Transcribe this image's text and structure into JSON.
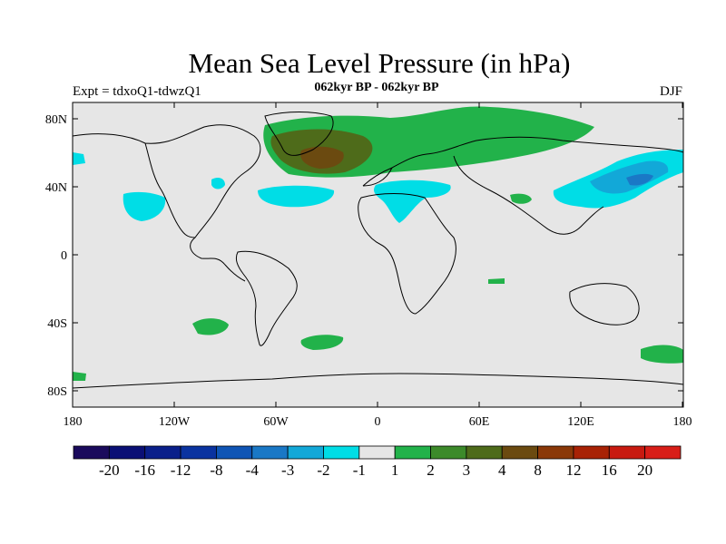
{
  "title": "Mean Sea Level Pressure (in hPa)",
  "experiment": "Expt = tdxoQ1-tdwzQ1",
  "period": "062kyr BP - 062kyr BP",
  "season": "DJF",
  "lat_ticks": [
    "80N",
    "40N",
    "0",
    "40S",
    "80S"
  ],
  "lon_ticks": [
    "180",
    "120W",
    "60W",
    "0",
    "60E",
    "120E",
    "180"
  ],
  "colorbar": {
    "labels": [
      "-20",
      "-16",
      "-12",
      "-8",
      "-4",
      "-3",
      "-2",
      "-1",
      "1",
      "2",
      "3",
      "4",
      "8",
      "12",
      "16",
      "20"
    ],
    "colors": [
      "#1a0a5c",
      "#0a0f75",
      "#0a1f8a",
      "#0a33a0",
      "#0f55b5",
      "#1a78c6",
      "#12a8d8",
      "#00dde6",
      "#e6e6e6",
      "#22b24a",
      "#3c8a2a",
      "#4e6b1a",
      "#6b4a10",
      "#8a3808",
      "#a82205",
      "#c81a10",
      "#d81e18"
    ]
  },
  "colors": {
    "neutral": "#e6e6e6",
    "positive_1": "#22b24a",
    "positive_2": "#4e6b1a",
    "positive_3": "#6b4a10",
    "negative_1": "#00dde6",
    "negative_2": "#12a8d8",
    "negative_3": "#1a78c6"
  }
}
